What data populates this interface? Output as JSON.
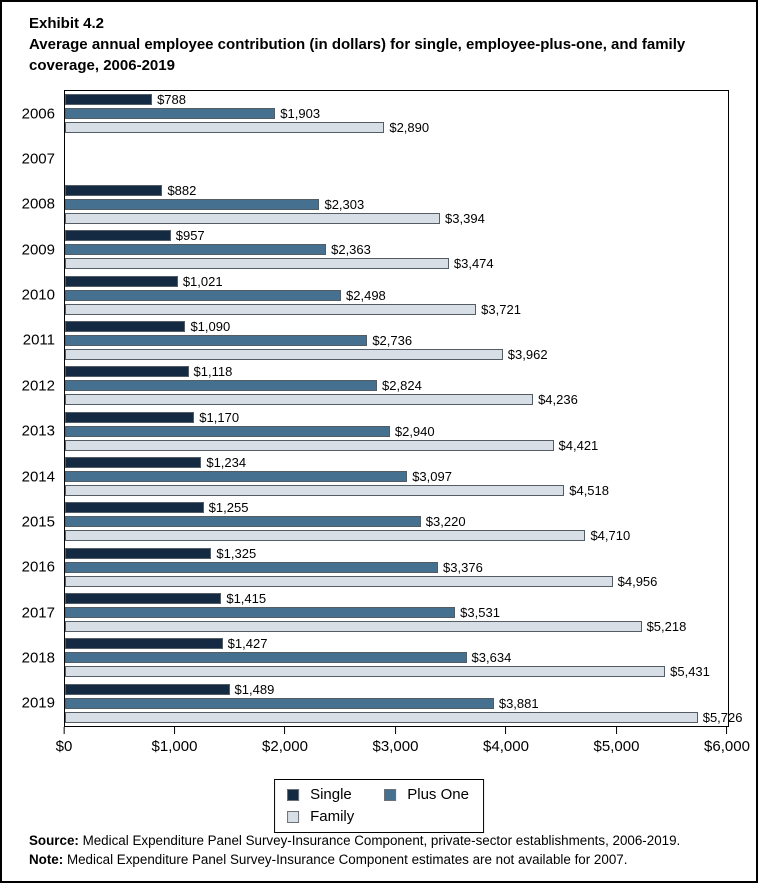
{
  "title": {
    "exhibit": "Exhibit 4.2",
    "heading": "Average annual employee contribution (in dollars) for single, employee-plus-one, and family coverage, 2006-2019"
  },
  "chart_data": {
    "type": "bar",
    "orientation": "horizontal",
    "title": "Average annual employee contribution (in dollars) for single, employee-plus-one, and family coverage, 2006-2019",
    "xlabel": "",
    "ylabel": "",
    "xlim": [
      0,
      6000
    ],
    "grid": false,
    "legend_position": "bottom-center",
    "categories": [
      "2006",
      "2007",
      "2008",
      "2009",
      "2010",
      "2011",
      "2012",
      "2013",
      "2014",
      "2015",
      "2016",
      "2017",
      "2018",
      "2019"
    ],
    "series": [
      {
        "name": "Single",
        "color": "#132A42",
        "values": [
          788,
          null,
          882,
          957,
          1021,
          1090,
          1118,
          1170,
          1234,
          1255,
          1325,
          1415,
          1427,
          1489
        ],
        "labels": [
          "$788",
          null,
          "$882",
          "$957",
          "$1,021",
          "$1,090",
          "$1,118",
          "$1,170",
          "$1,234",
          "$1,255",
          "$1,325",
          "$1,415",
          "$1,427",
          "$1,489"
        ]
      },
      {
        "name": "Plus One",
        "color": "#45708F",
        "values": [
          1903,
          null,
          2303,
          2363,
          2498,
          2736,
          2824,
          2940,
          3097,
          3220,
          3376,
          3531,
          3634,
          3881
        ],
        "labels": [
          "$1,903",
          null,
          "$2,303",
          "$2,363",
          "$2,498",
          "$2,736",
          "$2,824",
          "$2,940",
          "$3,097",
          "$3,220",
          "$3,376",
          "$3,531",
          "$3,634",
          "$3,881"
        ]
      },
      {
        "name": "Family",
        "color": "#D8DEE5",
        "values": [
          2890,
          null,
          3394,
          3474,
          3721,
          3962,
          4236,
          4421,
          4518,
          4710,
          4956,
          5218,
          5431,
          5726
        ],
        "labels": [
          "$2,890",
          null,
          "$3,394",
          "$3,474",
          "$3,721",
          "$3,962",
          "$4,236",
          "$4,421",
          "$4,518",
          "$4,710",
          "$4,956",
          "$5,218",
          "$5,431",
          "$5,726"
        ]
      }
    ],
    "x_ticks": [
      "$0",
      "$1,000",
      "$2,000",
      "$3,000",
      "$4,000",
      "$5,000",
      "$6,000"
    ],
    "legend": [
      "Single",
      "Plus One",
      "Family"
    ],
    "note_missing_year": "2007"
  },
  "footer": {
    "source_label": "Source:",
    "source_text": " Medical Expenditure Panel Survey-Insurance Component, private-sector establishments, 2006-2019.",
    "note_label": "Note:",
    "note_text": " Medical Expenditure Panel Survey-Insurance Component estimates are not available for 2007."
  }
}
